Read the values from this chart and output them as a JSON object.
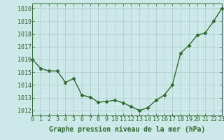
{
  "x": [
    0,
    1,
    2,
    3,
    4,
    5,
    6,
    7,
    8,
    9,
    10,
    11,
    12,
    13,
    14,
    15,
    16,
    17,
    18,
    19,
    20,
    21,
    22,
    23
  ],
  "y": [
    1016.0,
    1015.3,
    1015.1,
    1015.1,
    1014.2,
    1014.5,
    1013.2,
    1013.05,
    1012.65,
    1012.7,
    1012.8,
    1012.6,
    1012.3,
    1012.0,
    1012.2,
    1012.8,
    1013.2,
    1014.0,
    1016.5,
    1017.1,
    1017.9,
    1018.1,
    1019.0,
    1020.0
  ],
  "line_color": "#2d6a2d",
  "marker": "D",
  "marker_size": 2.5,
  "linewidth": 1.0,
  "bg_color": "#cce8e8",
  "grid_color": "#aacaca",
  "ylabel_ticks": [
    1012,
    1013,
    1014,
    1015,
    1016,
    1017,
    1018,
    1019,
    1020
  ],
  "xlabel_ticks": [
    0,
    1,
    2,
    3,
    4,
    5,
    6,
    7,
    8,
    9,
    10,
    11,
    12,
    13,
    14,
    15,
    16,
    17,
    18,
    19,
    20,
    21,
    22,
    23
  ],
  "xlim": [
    0,
    23
  ],
  "ylim": [
    1011.6,
    1020.4
  ],
  "xlabel": "Graphe pression niveau de la mer (hPa)",
  "xlabel_color": "#2d6a2d",
  "xlabel_fontsize": 7.0,
  "tick_fontsize": 6.0,
  "tick_color": "#2d6a2d"
}
